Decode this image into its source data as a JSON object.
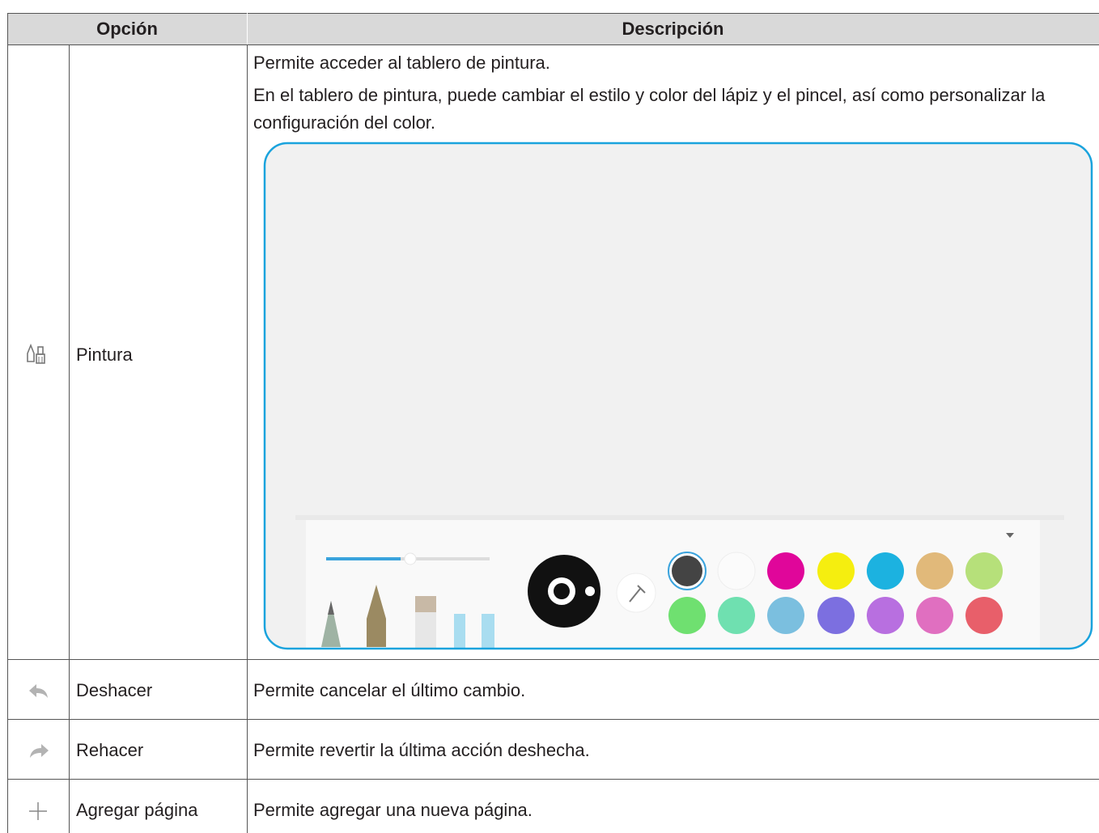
{
  "table": {
    "header": [
      "Opción",
      "Descripción"
    ],
    "rows": [
      {
        "option": "Pintura",
        "description": [
          "Permite acceder al tablero de pintura.",
          "En el tablero de pintura, puede cambiar el estilo y color del lápiz y el pincel, así como personalizar la configuración del color."
        ]
      },
      {
        "option": "Deshacer",
        "description": [
          "Permite cancelar el último cambio."
        ]
      },
      {
        "option": "Rehacer",
        "description": [
          "Permite revertir la última acción deshecha."
        ]
      },
      {
        "option": "Agregar página",
        "description": [
          "Permite agregar una nueva página."
        ]
      }
    ]
  }
}
